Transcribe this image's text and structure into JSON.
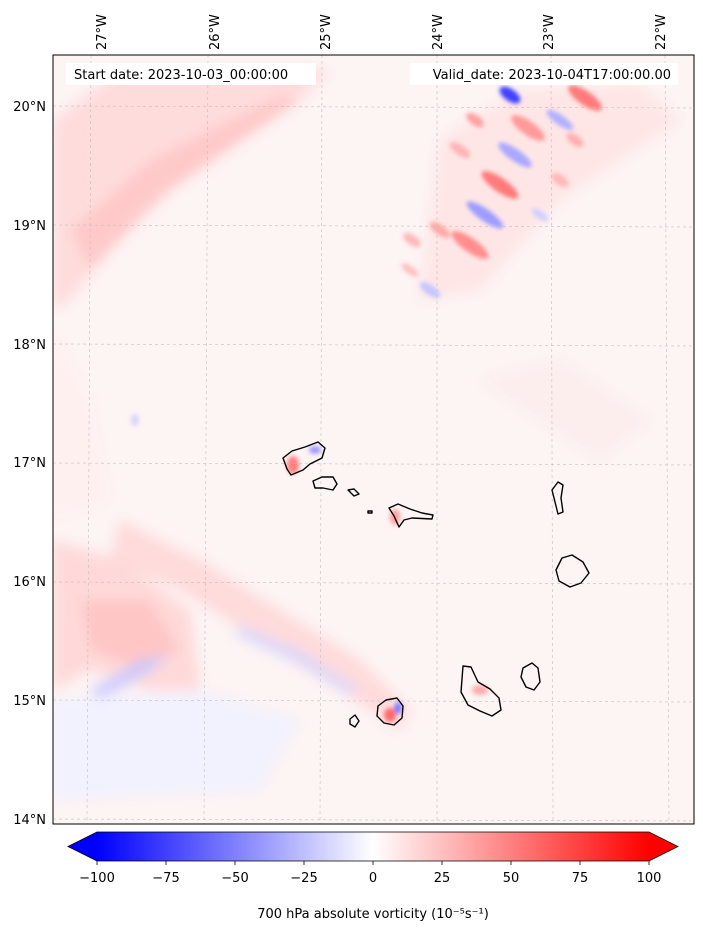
{
  "header": {
    "start_date": "Start date: 2023-10-03_00:00:00",
    "valid_date": "Valid_date: 2023-10-04T17:00:00.00"
  },
  "map": {
    "lon_labels": [
      "27°W",
      "26°W",
      "25°W",
      "24°W",
      "23°W",
      "22°W"
    ],
    "lat_labels": [
      "20°N",
      "19°N",
      "18°N",
      "17°N",
      "16°N",
      "15°N",
      "14°N"
    ],
    "lon_range": [
      -27.33,
      -21.77
    ],
    "lat_range": [
      13.95,
      20.4
    ]
  },
  "colorbar": {
    "min": -100,
    "max": 100,
    "tick_labels": [
      "−100",
      "−75",
      "−50",
      "−25",
      "0",
      "25",
      "50",
      "75",
      "100"
    ],
    "tick_values": [
      -100,
      -75,
      -50,
      -25,
      0,
      25,
      50,
      75,
      100
    ],
    "label": "700 hPa absolute vorticity (10⁻⁵s⁻¹)",
    "cmap": "bwr",
    "colors": {
      "negative": "#0000ff",
      "zero": "#ffffff",
      "positive": "#ff0000"
    }
  }
}
